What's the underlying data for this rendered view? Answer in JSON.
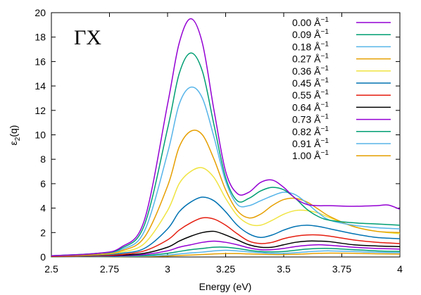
{
  "chart_data": {
    "type": "line",
    "panel_label": "ΓX",
    "xlabel": "Energy (eV)",
    "ylabel_main": "ε",
    "ylabel_sub": "2",
    "ylabel_tail": "(q)",
    "xlim": [
      2.5,
      4.0
    ],
    "ylim": [
      0,
      20
    ],
    "x_ticks": [
      2.5,
      2.75,
      3.0,
      3.25,
      3.5,
      3.75,
      4.0
    ],
    "x_tick_labels": [
      "2.5",
      "2.75",
      "3",
      "3.25",
      "3.5",
      "3.75",
      "4"
    ],
    "y_ticks": [
      0,
      2,
      4,
      6,
      8,
      10,
      12,
      14,
      16,
      18,
      20
    ],
    "y_tick_labels": [
      "0",
      "2",
      "4",
      "6",
      "8",
      "10",
      "12",
      "14",
      "16",
      "18",
      "20"
    ],
    "grid": false,
    "legend_position": "top-right",
    "legend_unit": " Å",
    "legend_exp": "−1",
    "series": [
      {
        "name": "0.00",
        "color": "#9400d3",
        "x": [
          2.5,
          2.7,
          2.8,
          2.9,
          3.0,
          3.05,
          3.1,
          3.15,
          3.2,
          3.25,
          3.3,
          3.35,
          3.4,
          3.45,
          3.5,
          3.55,
          3.6,
          3.65,
          3.7,
          3.8,
          3.9,
          3.95,
          4.0
        ],
        "y": [
          0.1,
          0.3,
          0.8,
          3.0,
          12.5,
          17.5,
          19.5,
          17.5,
          12.0,
          7.0,
          5.2,
          5.3,
          6.1,
          6.3,
          5.7,
          4.8,
          4.3,
          4.2,
          4.2,
          4.15,
          4.2,
          4.25,
          3.9
        ]
      },
      {
        "name": "0.09",
        "color": "#009e73",
        "x": [
          2.5,
          2.7,
          2.8,
          2.9,
          3.0,
          3.05,
          3.1,
          3.15,
          3.2,
          3.25,
          3.3,
          3.35,
          3.4,
          3.45,
          3.5,
          3.55,
          3.6,
          3.65,
          3.7,
          3.8,
          3.9,
          4.0
        ],
        "y": [
          0.1,
          0.3,
          0.7,
          2.6,
          10.5,
          15.0,
          16.7,
          15.2,
          10.8,
          6.5,
          4.6,
          4.8,
          5.4,
          5.7,
          5.5,
          4.8,
          3.9,
          3.3,
          3.0,
          2.8,
          2.7,
          2.6
        ]
      },
      {
        "name": "0.18",
        "color": "#56b4e9",
        "x": [
          2.5,
          2.7,
          2.8,
          2.9,
          3.0,
          3.05,
          3.1,
          3.15,
          3.2,
          3.25,
          3.3,
          3.35,
          3.4,
          3.45,
          3.5,
          3.55,
          3.6,
          3.65,
          3.7,
          3.8,
          3.9,
          4.0
        ],
        "y": [
          0.1,
          0.3,
          0.6,
          2.1,
          8.5,
          12.5,
          13.9,
          13.0,
          9.8,
          6.2,
          4.3,
          4.2,
          4.6,
          5.0,
          5.3,
          5.1,
          4.4,
          3.6,
          3.0,
          2.6,
          2.4,
          2.3
        ]
      },
      {
        "name": "0.27",
        "color": "#e69f00",
        "x": [
          2.5,
          2.7,
          2.8,
          2.9,
          3.0,
          3.05,
          3.1,
          3.15,
          3.2,
          3.25,
          3.3,
          3.35,
          3.4,
          3.45,
          3.5,
          3.55,
          3.6,
          3.65,
          3.7,
          3.8,
          3.9,
          4.0
        ],
        "y": [
          0.1,
          0.2,
          0.5,
          1.6,
          5.8,
          9.0,
          10.3,
          10.0,
          8.0,
          5.5,
          3.8,
          3.2,
          3.5,
          4.2,
          4.7,
          4.8,
          4.5,
          3.9,
          3.3,
          2.5,
          2.1,
          2.0
        ]
      },
      {
        "name": "0.36",
        "color": "#f0e442",
        "x": [
          2.5,
          2.7,
          2.8,
          2.9,
          3.0,
          3.05,
          3.1,
          3.15,
          3.2,
          3.25,
          3.3,
          3.35,
          3.4,
          3.45,
          3.5,
          3.55,
          3.6,
          3.65,
          3.7,
          3.8,
          3.9,
          4.0
        ],
        "y": [
          0.1,
          0.2,
          0.4,
          1.1,
          3.8,
          6.0,
          7.0,
          7.3,
          6.5,
          4.8,
          3.4,
          2.7,
          2.6,
          3.0,
          3.5,
          3.8,
          3.8,
          3.6,
          3.2,
          2.5,
          2.1,
          1.9
        ]
      },
      {
        "name": "0.45",
        "color": "#0072b2",
        "x": [
          2.5,
          2.7,
          2.8,
          2.9,
          3.0,
          3.05,
          3.1,
          3.15,
          3.2,
          3.25,
          3.3,
          3.35,
          3.4,
          3.45,
          3.5,
          3.55,
          3.6,
          3.65,
          3.7,
          3.8,
          3.9,
          4.0
        ],
        "y": [
          0.1,
          0.15,
          0.3,
          0.7,
          2.3,
          3.7,
          4.5,
          4.9,
          4.6,
          3.7,
          2.6,
          1.9,
          1.6,
          1.8,
          2.2,
          2.5,
          2.6,
          2.5,
          2.3,
          1.9,
          1.6,
          1.5
        ]
      },
      {
        "name": "0.55",
        "color": "#e51e10",
        "x": [
          2.5,
          2.7,
          2.8,
          2.9,
          3.0,
          3.05,
          3.1,
          3.15,
          3.2,
          3.25,
          3.3,
          3.35,
          3.4,
          3.45,
          3.5,
          3.55,
          3.6,
          3.65,
          3.7,
          3.8,
          3.9,
          4.0
        ],
        "y": [
          0.05,
          0.1,
          0.2,
          0.5,
          1.4,
          2.2,
          2.8,
          3.2,
          3.1,
          2.6,
          1.9,
          1.3,
          1.1,
          1.2,
          1.5,
          1.7,
          1.8,
          1.8,
          1.7,
          1.4,
          1.2,
          1.1
        ]
      },
      {
        "name": "0.64",
        "color": "#000000",
        "x": [
          2.5,
          2.7,
          2.8,
          2.9,
          3.0,
          3.05,
          3.1,
          3.15,
          3.2,
          3.25,
          3.3,
          3.35,
          3.4,
          3.45,
          3.5,
          3.55,
          3.6,
          3.65,
          3.7,
          3.8,
          3.9,
          4.0
        ],
        "y": [
          0.05,
          0.1,
          0.15,
          0.3,
          0.8,
          1.3,
          1.7,
          2.0,
          2.1,
          1.8,
          1.4,
          1.0,
          0.8,
          0.8,
          1.0,
          1.2,
          1.3,
          1.3,
          1.25,
          1.0,
          0.9,
          0.85
        ]
      },
      {
        "name": "0.73",
        "color": "#9400d3",
        "x": [
          2.5,
          2.7,
          2.8,
          2.9,
          3.0,
          3.05,
          3.1,
          3.15,
          3.2,
          3.25,
          3.3,
          3.35,
          3.4,
          3.45,
          3.5,
          3.55,
          3.6,
          3.65,
          3.7,
          3.8,
          3.9,
          4.0
        ],
        "y": [
          0.05,
          0.08,
          0.1,
          0.2,
          0.5,
          0.8,
          1.0,
          1.2,
          1.3,
          1.2,
          1.0,
          0.75,
          0.6,
          0.6,
          0.7,
          0.85,
          0.95,
          1.0,
          0.95,
          0.8,
          0.7,
          0.65
        ]
      },
      {
        "name": "0.82",
        "color": "#009e73",
        "x": [
          2.5,
          2.7,
          2.8,
          2.9,
          3.0,
          3.05,
          3.1,
          3.15,
          3.2,
          3.25,
          3.3,
          3.35,
          3.4,
          3.45,
          3.5,
          3.55,
          3.6,
          3.65,
          3.7,
          3.8,
          3.9,
          4.0
        ],
        "y": [
          0.03,
          0.05,
          0.07,
          0.12,
          0.3,
          0.45,
          0.6,
          0.7,
          0.8,
          0.8,
          0.7,
          0.55,
          0.45,
          0.42,
          0.45,
          0.55,
          0.65,
          0.7,
          0.7,
          0.6,
          0.5,
          0.45
        ]
      },
      {
        "name": "0.91",
        "color": "#56b4e9",
        "x": [
          2.5,
          2.7,
          2.8,
          2.9,
          3.0,
          3.05,
          3.1,
          3.15,
          3.2,
          3.25,
          3.3,
          3.35,
          3.4,
          3.45,
          3.5,
          3.55,
          3.6,
          3.65,
          3.7,
          3.8,
          3.9,
          4.0
        ],
        "y": [
          0.02,
          0.03,
          0.05,
          0.08,
          0.15,
          0.25,
          0.33,
          0.4,
          0.5,
          0.55,
          0.5,
          0.42,
          0.35,
          0.3,
          0.3,
          0.35,
          0.42,
          0.48,
          0.5,
          0.45,
          0.38,
          0.35
        ]
      },
      {
        "name": "1.00",
        "color": "#e69f00",
        "x": [
          2.5,
          2.7,
          2.8,
          2.9,
          3.0,
          3.05,
          3.1,
          3.15,
          3.2,
          3.25,
          3.3,
          3.35,
          3.4,
          3.45,
          3.5,
          3.55,
          3.6,
          3.65,
          3.7,
          3.8,
          3.9,
          4.0
        ],
        "y": [
          0.01,
          0.02,
          0.03,
          0.05,
          0.08,
          0.12,
          0.16,
          0.2,
          0.25,
          0.28,
          0.28,
          0.25,
          0.22,
          0.2,
          0.2,
          0.22,
          0.26,
          0.3,
          0.32,
          0.3,
          0.26,
          0.24
        ]
      }
    ]
  }
}
